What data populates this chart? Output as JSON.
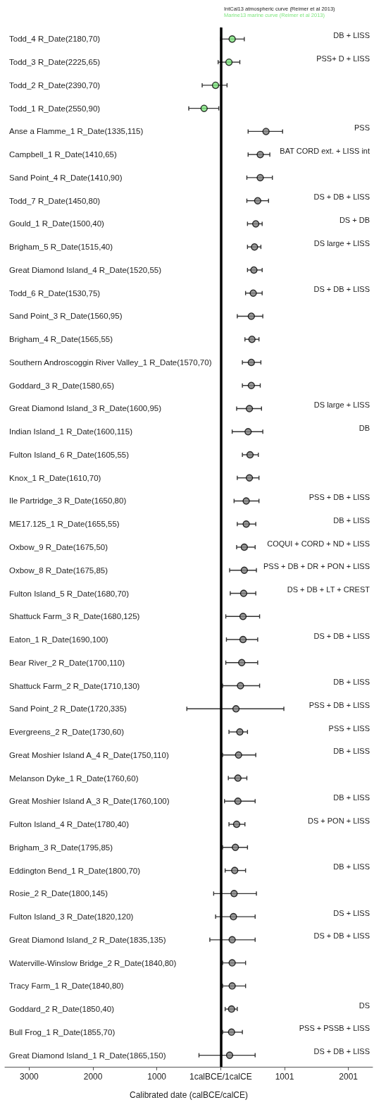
{
  "chart_data": {
    "type": "scatter",
    "orientation": "horizontal",
    "xlabel": "Calibrated date (calBCE/calCE)",
    "categories": [
      "Todd_4 R_Date(2180,70)",
      "Todd_3 R_Date(2225,65)",
      "Todd_2 R_Date(2390,70)",
      "Todd_1 R_Date(2550,90)",
      "Anse a Flamme_1 R_Date(1335,115)",
      "Campbell_1 R_Date(1410,65)",
      "Sand Point_4 R_Date(1410,90)",
      "Todd_7 R_Date(1450,80)",
      "Gould_1 R_Date(1500,40)",
      "Brigham_5 R_Date(1515,40)",
      "Great Diamond Island_4 R_Date(1520,55)",
      "Todd_6 R_Date(1530,75)",
      "Sand Point_3 R_Date(1560,95)",
      "Brigham_4 R_Date(1565,55)",
      "Southern Androscoggin River Valley_1 R_Date(1570,70)",
      "Goddard_3 R_Date(1580,65)",
      "Great Diamond Island_3 R_Date(1600,95)",
      "Indian Island_1 R_Date(1600,115)",
      "Fulton Island_6 R_Date(1605,55)",
      "Knox_1 R_Date(1610,70)",
      "Ile Partridge_3 R_Date(1650,80)",
      "ME17.125_1 R_Date(1655,55)",
      "Oxbow_9 R_Date(1675,50)",
      "Oxbow_8 R_Date(1675,85)",
      "Fulton Island_5 R_Date(1680,70)",
      "Shattuck Farm_3 R_Date(1680,125)",
      "Eaton_1 R_Date(1690,100)",
      "Bear River_2 R_Date(1700,110)",
      "Shattuck Farm_2 R_Date(1710,130)",
      "Sand Point_2 R_Date(1720,335)",
      "Evergreens_2 R_Date(1730,60)",
      "Great Moshier Island A_4 R_Date(1750,110)",
      "Melanson Dyke_1 R_Date(1760,60)",
      "Great Moshier Island A_3 R_Date(1760,100)",
      "Fulton Island_4 R_Date(1780,40)",
      "Brigham_3 R_Date(1795,85)",
      "Eddington Bend_1 R_Date(1800,70)",
      "Rosie_2 R_Date(1800,145)",
      "Fulton Island_3 R_Date(1820,120)",
      "Great Diamond Island_2 R_Date(1835,135)",
      "Waterville-Winslow Bridge_2 R_Date(1840,80)",
      "Tracy Farm_1 R_Date(1840,80)",
      "Goddard_2 R_Date(1850,40)",
      "Bull Frog_1 R_Date(1855,70)",
      "Great Diamond Island_1 R_Date(1865,150)"
    ],
    "y2_categories": [
      "DB + LISS",
      "PSS+ D + LISS",
      null,
      null,
      "PSS",
      "BAT CORD ext. + LISS int",
      null,
      "DS + DB + LISS",
      "DS + DB",
      "DS large + LISS",
      null,
      "DS + DB + LISS",
      null,
      null,
      null,
      null,
      "DS large + LISS",
      "DB",
      null,
      null,
      "PSS + DB + LISS",
      "DB + LISS",
      "COQUI + CORD + ND + LISS",
      "PSS + DB + DR + PON + LISS",
      "DS + DB + LT + CREST",
      null,
      "DS + DB + LISS",
      null,
      "DB + LISS",
      "PSS + DB + LISS",
      "PSS + LISS",
      "DB + LISS",
      null,
      "DB + LISS",
      "DS + PON + LISS",
      null,
      "DB + LISS",
      null,
      "DS + LISS",
      "DS + DB + LISS",
      null,
      null,
      "DS",
      "PSS + PSSB + LISS",
      "DS + DB + LISS"
    ],
    "values": [
      180,
      130,
      -80,
      -260,
      710,
      620,
      620,
      580,
      550,
      530,
      520,
      510,
      480,
      490,
      480,
      480,
      450,
      430,
      460,
      450,
      400,
      400,
      370,
      370,
      360,
      350,
      350,
      330,
      310,
      240,
      300,
      280,
      270,
      270,
      250,
      230,
      220,
      210,
      200,
      180,
      180,
      180,
      170,
      170,
      140
    ],
    "errors": [
      [
        0,
        370
      ],
      [
        -40,
        300
      ],
      [
        -290,
        100
      ],
      [
        -500,
        -30
      ],
      [
        430,
        970
      ],
      [
        430,
        770
      ],
      [
        410,
        810
      ],
      [
        410,
        750
      ],
      [
        420,
        650
      ],
      [
        420,
        630
      ],
      [
        420,
        650
      ],
      [
        390,
        650
      ],
      [
        260,
        660
      ],
      [
        380,
        600
      ],
      [
        340,
        630
      ],
      [
        340,
        620
      ],
      [
        250,
        640
      ],
      [
        180,
        660
      ],
      [
        340,
        590
      ],
      [
        260,
        600
      ],
      [
        210,
        600
      ],
      [
        260,
        550
      ],
      [
        250,
        540
      ],
      [
        140,
        560
      ],
      [
        150,
        550
      ],
      [
        80,
        610
      ],
      [
        90,
        580
      ],
      [
        80,
        580
      ],
      [
        30,
        610
      ],
      [
        -530,
        990
      ],
      [
        130,
        420
      ],
      [
        30,
        550
      ],
      [
        120,
        410
      ],
      [
        60,
        540
      ],
      [
        130,
        380
      ],
      [
        30,
        420
      ],
      [
        70,
        390
      ],
      [
        -110,
        560
      ],
      [
        -80,
        540
      ],
      [
        -170,
        540
      ],
      [
        30,
        390
      ],
      [
        30,
        390
      ],
      [
        70,
        260
      ],
      [
        30,
        340
      ],
      [
        -340,
        540
      ]
    ],
    "colors": [
      "#7de57d",
      "#7de57d",
      "#7de57d",
      "#7de57d",
      "#808080",
      "#808080",
      "#808080",
      "#808080",
      "#808080",
      "#808080",
      "#808080",
      "#808080",
      "#808080",
      "#808080",
      "#808080",
      "#808080",
      "#808080",
      "#808080",
      "#808080",
      "#808080",
      "#808080",
      "#808080",
      "#808080",
      "#808080",
      "#808080",
      "#808080",
      "#808080",
      "#808080",
      "#808080",
      "#808080",
      "#808080",
      "#808080",
      "#808080",
      "#808080",
      "#808080",
      "#808080",
      "#808080",
      "#808080",
      "#808080",
      "#808080",
      "#808080",
      "#808080",
      "#808080",
      "#808080",
      "#808080"
    ],
    "xlim": [
      -3380,
      2380
    ],
    "xticks": [
      {
        "value": -3000,
        "label": "3000"
      },
      {
        "value": -2000,
        "label": "2000"
      },
      {
        "value": -1000,
        "label": "1000"
      },
      {
        "value": 0,
        "label": "1calBCE/1calCE"
      },
      1001,
      2001
    ],
    "marker": "circle",
    "ref_lines": [
      {
        "axis": "x",
        "value": 0,
        "color": "#000000"
      }
    ],
    "annotations": [
      "IntCal13 atmospheric curve (Reimer et al 2013)",
      "Marine13 marine curve (Reimer et al 2013)"
    ]
  }
}
